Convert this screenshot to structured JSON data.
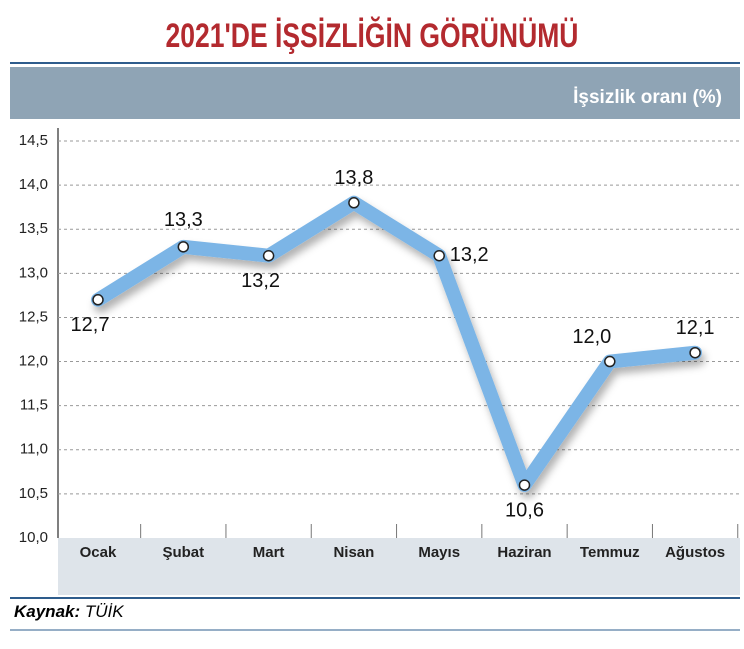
{
  "chart_data": {
    "type": "line",
    "title": "2021'DE İŞSİZLİĞİN GÖRÜNÜMÜ",
    "y_label": "İşsizlik oranı (%)",
    "source_label": "Kaynak:",
    "source": "TÜİK",
    "categories": [
      "Ocak",
      "Şubat",
      "Mart",
      "Nisan",
      "Mayıs",
      "Haziran",
      "Temmuz",
      "Ağustos"
    ],
    "values": [
      12.7,
      13.3,
      13.2,
      13.8,
      13.2,
      10.6,
      12.0,
      12.1
    ],
    "value_labels": [
      "12,7",
      "13,3",
      "13,2",
      "13,8",
      "13,2",
      "10,6",
      "12,0",
      "12,1"
    ],
    "color": "#7cb5e6",
    "ylim": [
      10.0,
      14.5
    ],
    "yticks": [
      {
        "value": 10.0,
        "label": "10,0"
      },
      {
        "value": 10.5,
        "label": "10,5"
      },
      {
        "value": 11.0,
        "label": "11,0"
      },
      {
        "value": 11.5,
        "label": "11,5"
      },
      {
        "value": 12.0,
        "label": "12,0"
      },
      {
        "value": 12.5,
        "label": "12,5"
      },
      {
        "value": 13.0,
        "label": "13,0"
      },
      {
        "value": 13.5,
        "label": "13,5"
      },
      {
        "value": 14.0,
        "label": "14,0"
      },
      {
        "value": 14.5,
        "label": "14,5"
      }
    ],
    "grid": true
  }
}
